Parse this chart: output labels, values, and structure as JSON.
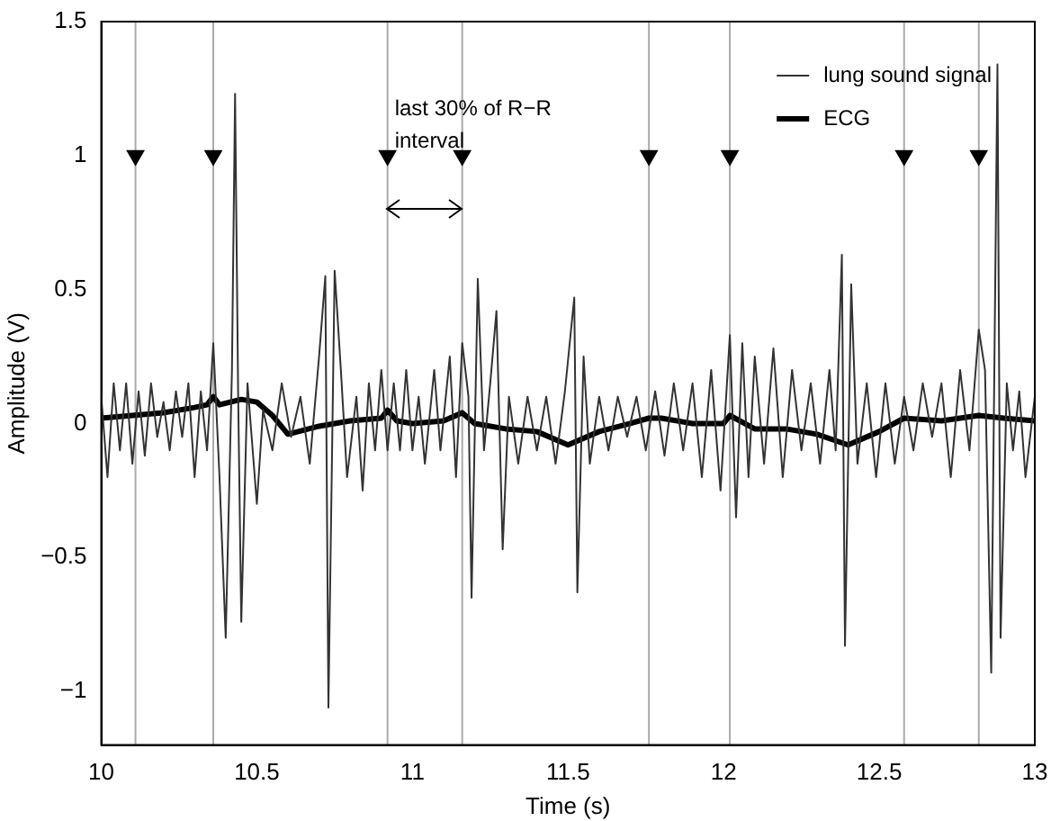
{
  "chart_data": {
    "type": "line",
    "xlabel": "Time (s)",
    "ylabel": "Amplitude (V)",
    "xlim": [
      10,
      13
    ],
    "xticks": [
      10,
      10.5,
      11,
      11.5,
      12,
      12.5,
      13
    ],
    "ylim": [
      -1.2,
      1.5
    ],
    "yticks": [
      -1,
      -0.5,
      0,
      0.5,
      1,
      1.5
    ],
    "legend": "top right",
    "line_style": "solid",
    "series": [
      {
        "name": "lung sound signal",
        "color": "#333333",
        "x": [
          10.0,
          10.02,
          10.04,
          10.06,
          10.08,
          10.1,
          10.12,
          10.14,
          10.16,
          10.18,
          10.2,
          10.22,
          10.24,
          10.26,
          10.28,
          10.3,
          10.32,
          10.34,
          10.36,
          10.38,
          10.4,
          10.42,
          10.43,
          10.44,
          10.45,
          10.47,
          10.5,
          10.52,
          10.55,
          10.58,
          10.61,
          10.64,
          10.67,
          10.7,
          10.72,
          10.73,
          10.75,
          10.77,
          10.79,
          10.82,
          10.84,
          10.86,
          10.88,
          10.9,
          10.92,
          10.94,
          10.96,
          10.98,
          11.0,
          11.02,
          11.04,
          11.07,
          11.09,
          11.12,
          11.14,
          11.16,
          11.18,
          11.19,
          11.21,
          11.23,
          11.25,
          11.27,
          11.29,
          11.31,
          11.34,
          11.37,
          11.4,
          11.43,
          11.46,
          11.49,
          11.52,
          11.53,
          11.55,
          11.57,
          11.6,
          11.63,
          11.66,
          11.69,
          11.72,
          11.75,
          11.78,
          11.81,
          11.84,
          11.87,
          11.9,
          11.93,
          11.96,
          11.99,
          12.02,
          12.04,
          12.06,
          12.08,
          12.1,
          12.13,
          12.16,
          12.19,
          12.22,
          12.25,
          12.28,
          12.31,
          12.34,
          12.36,
          12.38,
          12.39,
          12.41,
          12.43,
          12.46,
          12.49,
          12.52,
          12.55,
          12.58,
          12.61,
          12.64,
          12.67,
          12.7,
          12.73,
          12.76,
          12.79,
          12.82,
          12.84,
          12.86,
          12.88,
          12.89,
          12.91,
          12.93,
          12.95,
          12.97,
          13.0
        ],
        "values": [
          0.1,
          -0.2,
          0.15,
          -0.1,
          0.15,
          -0.15,
          0.12,
          -0.12,
          0.15,
          -0.05,
          0.08,
          -0.1,
          0.12,
          -0.05,
          0.15,
          -0.2,
          0.12,
          -0.1,
          0.3,
          -0.2,
          -0.8,
          0.2,
          1.23,
          0.1,
          -0.74,
          0.15,
          -0.3,
          0.05,
          -0.1,
          0.15,
          -0.05,
          0.1,
          -0.15,
          0.25,
          0.55,
          -1.06,
          0.57,
          0.2,
          -0.2,
          0.1,
          -0.25,
          0.15,
          -0.1,
          0.2,
          -0.1,
          0.15,
          -0.1,
          0.2,
          -0.1,
          0.1,
          -0.15,
          0.2,
          -0.1,
          0.25,
          -0.2,
          0.3,
          0.1,
          -0.65,
          0.54,
          -0.1,
          0.15,
          0.42,
          -0.47,
          0.1,
          -0.15,
          0.1,
          -0.1,
          0.1,
          -0.15,
          0.12,
          0.47,
          -0.63,
          0.25,
          -0.15,
          0.1,
          -0.1,
          0.1,
          -0.05,
          0.1,
          -0.1,
          0.12,
          -0.12,
          0.15,
          -0.1,
          0.15,
          -0.2,
          0.2,
          -0.25,
          0.33,
          -0.35,
          0.3,
          -0.2,
          0.25,
          -0.15,
          0.28,
          -0.2,
          0.2,
          -0.1,
          0.15,
          -0.15,
          0.2,
          -0.1,
          0.63,
          -0.83,
          0.52,
          -0.15,
          0.15,
          -0.2,
          0.15,
          -0.15,
          0.1,
          -0.1,
          0.15,
          -0.05,
          0.15,
          -0.2,
          0.2,
          -0.1,
          0.35,
          0.2,
          -0.93,
          1.34,
          -0.8,
          0.15,
          -0.1,
          0.12,
          -0.2,
          0.1
        ]
      },
      {
        "name": "ECG",
        "color": "#000000",
        "x": [
          10.0,
          10.1,
          10.2,
          10.3,
          10.34,
          10.36,
          10.38,
          10.45,
          10.5,
          10.55,
          10.6,
          10.7,
          10.8,
          10.9,
          10.92,
          10.95,
          11.0,
          11.1,
          11.16,
          11.2,
          11.3,
          11.4,
          11.5,
          11.6,
          11.7,
          11.76,
          11.8,
          11.9,
          12.0,
          12.02,
          12.1,
          12.2,
          12.3,
          12.4,
          12.5,
          12.58,
          12.7,
          12.82,
          12.9,
          13.0
        ],
        "values": [
          0.02,
          0.03,
          0.04,
          0.06,
          0.07,
          0.1,
          0.07,
          0.09,
          0.08,
          0.03,
          -0.04,
          -0.01,
          0.01,
          0.02,
          0.05,
          0.01,
          0.0,
          0.01,
          0.04,
          0.0,
          -0.02,
          -0.03,
          -0.08,
          -0.03,
          0.0,
          0.02,
          0.02,
          0.0,
          0.0,
          0.03,
          -0.02,
          -0.02,
          -0.04,
          -0.08,
          -0.03,
          0.02,
          0.01,
          0.03,
          0.02,
          0.01
        ]
      },
      {
        "type": "scatter",
        "marker": "triangle",
        "color": "#000000",
        "x": [
          10.11,
          10.36,
          10.92,
          11.16,
          11.76,
          12.02,
          12.58,
          12.82
        ],
        "values": [
          1,
          1,
          1,
          1,
          1,
          1,
          1,
          1
        ]
      }
    ],
    "ref_lines": [
      {
        "axis": "x",
        "value": 10.11,
        "color": "#aaaaaa"
      },
      {
        "axis": "x",
        "value": 10.36,
        "color": "#aaaaaa"
      },
      {
        "axis": "x",
        "value": 10.92,
        "color": "#aaaaaa"
      },
      {
        "axis": "x",
        "value": 11.16,
        "color": "#aaaaaa"
      },
      {
        "axis": "x",
        "value": 11.76,
        "color": "#aaaaaa"
      },
      {
        "axis": "x",
        "value": 12.02,
        "color": "#aaaaaa"
      },
      {
        "axis": "x",
        "value": 12.58,
        "color": "#aaaaaa"
      },
      {
        "axis": "x",
        "value": 12.82,
        "color": "#aaaaaa"
      }
    ],
    "annotations": [
      {
        "text": "last 30% of R−R interval",
        "x": 10.92,
        "y": 0.8
      }
    ]
  }
}
